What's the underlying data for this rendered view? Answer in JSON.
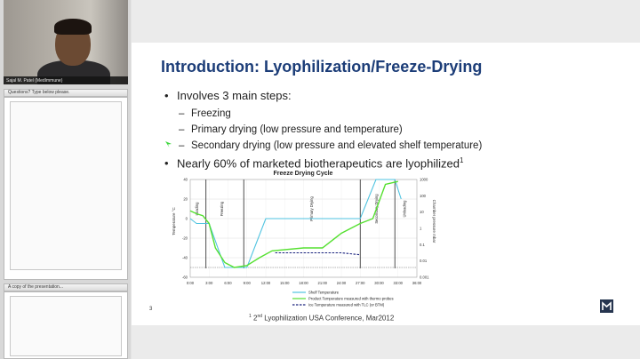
{
  "webcam": {
    "presenter_name": "Sajal M. Patel (MedImmune)"
  },
  "pods": {
    "questions_title": "Questions? Type below please.",
    "copy_title": "A copy of the presentation..."
  },
  "slide": {
    "title": "Introduction: Lyophilization/Freeze-Drying",
    "bullet1": "Involves 3 main steps:",
    "sub1": "Freezing",
    "sub2": "Primary drying (low pressure and temperature)",
    "sub3": "Secondary drying (low pressure and elevated shelf temperature)",
    "bullet2": "Nearly 60% of marketed biotherapeutics are lyophilized",
    "bullet2_sup": "1",
    "page_number": "3",
    "footnote_sup": "1",
    "footnote_mark": "nd",
    "footnote_pre": "2",
    "footnote_text": "Lyophilization USA Conference, Mar2012"
  },
  "chart_data": {
    "type": "line",
    "title": "Freeze Drying Cycle",
    "ylabel": "Temperature °C",
    "y2label": "Chamber pressure mbar",
    "ylim": [
      -60,
      40
    ],
    "y_ticks": [
      "40",
      "20",
      "0",
      "-20",
      "-40",
      "-60"
    ],
    "y2_ticks": [
      "1000",
      "100",
      "10",
      "1",
      "0.1",
      "0.01",
      "0.001"
    ],
    "x_ticks": [
      "0:00",
      "3:00",
      "6:00",
      "9:00",
      "12:00",
      "15:00",
      "18:00",
      "21:00",
      "24:00",
      "27:00",
      "30:00",
      "33:00",
      "36:00"
    ],
    "phase_labels": [
      "Loading",
      "Freezing",
      "Primary Drying",
      "Secondary Drying",
      "Unloading"
    ],
    "legend_position": "bottom",
    "series": [
      {
        "name": "Shelf Temperature",
        "color": "#4fc3e0",
        "x": [
          0,
          1,
          2,
          3,
          5.5,
          8,
          9,
          12,
          27,
          29.5,
          30,
          32.5,
          33.5
        ],
        "y": [
          0,
          -5,
          -5,
          -5,
          -50,
          -50,
          -50,
          0,
          0,
          40,
          40,
          40,
          20
        ]
      },
      {
        "name": "Product Temperature measured with thermo probes",
        "color": "#55e030",
        "x": [
          0,
          1,
          2,
          3,
          4,
          5.5,
          7,
          9,
          11,
          13,
          18,
          21,
          24,
          27,
          29,
          31,
          33
        ],
        "y": [
          8,
          5,
          3,
          -5,
          -30,
          -45,
          -50,
          -48,
          -40,
          -33,
          -30,
          -30,
          -15,
          -5,
          0,
          35,
          38
        ]
      },
      {
        "name": "Ice Temperature measured with TLC (or BTM)",
        "color": "#1a237e",
        "dashed": true,
        "x": [
          13.5,
          24,
          27
        ],
        "y": [
          -35,
          -35,
          -37
        ]
      }
    ]
  }
}
